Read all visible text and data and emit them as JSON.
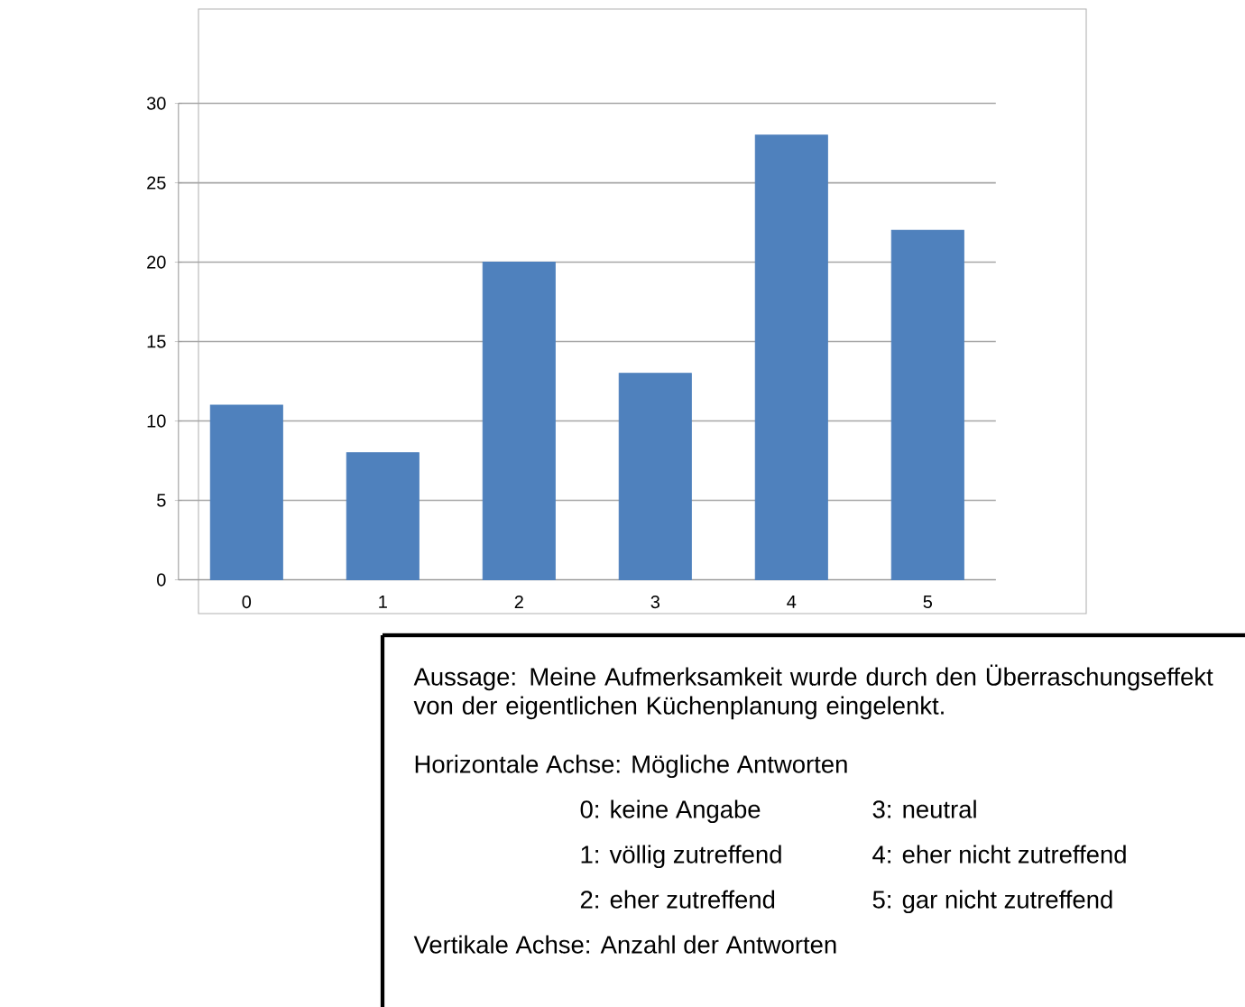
{
  "chart_data": {
    "type": "bar",
    "categories": [
      "0",
      "1",
      "2",
      "3",
      "4",
      "5"
    ],
    "values": [
      11,
      8,
      20,
      13,
      28,
      22
    ],
    "color": "#4f81bd",
    "ylim": [
      0,
      30
    ],
    "yticks": [
      0,
      5,
      10,
      15,
      20,
      25,
      30
    ],
    "grid": "y",
    "annotations": [
      "Aussage: Meine Aufmerksamkeit wurde durch den Überraschungseffekt von der eigentlichen Küchenplanung eingelenkt.",
      "Horizontale Achse: Mögliche Antworten",
      "0: keine Angabe",
      "1: völlig zutreffend",
      "2: eher zutreffend",
      "3: neutral",
      "4: eher nicht zutreffend",
      "5: gar nicht zutreffend",
      "Vertikale Achse: Anzahl der Antworten"
    ]
  }
}
